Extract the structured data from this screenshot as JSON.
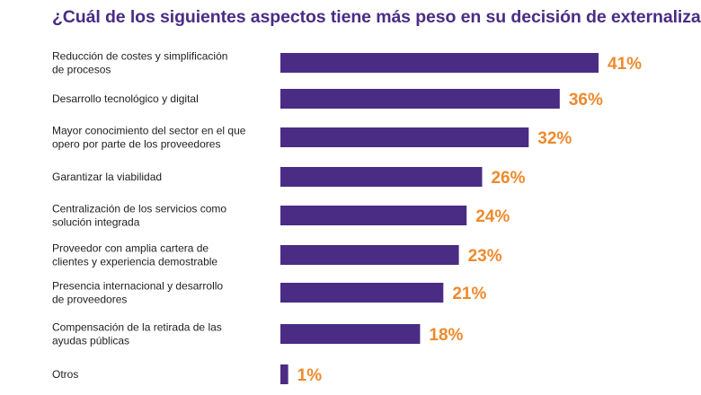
{
  "chart_data": {
    "type": "bar",
    "orientation": "horizontal",
    "title": "¿Cuál de los siguientes aspectos tiene más peso en su decisión de externalizar?",
    "categories": [
      [
        "Reducción de costes y simplificación",
        "de procesos"
      ],
      [
        "Desarrollo tecnológico y digital"
      ],
      [
        "Mayor conocimiento del sector en el que",
        "opero por parte de los proveedores"
      ],
      [
        "Garantizar la viabilidad"
      ],
      [
        "Centralización de los servicios como",
        "solución integrada"
      ],
      [
        "Proveedor con amplia cartera de",
        "clientes y experiencia demostrable"
      ],
      [
        "Presencia internacional y desarrollo",
        "de proveedores"
      ],
      [
        "Compensación de la retirada de las",
        "ayudas públicas"
      ],
      [
        "Otros"
      ]
    ],
    "values": [
      41,
      36,
      32,
      26,
      24,
      23,
      21,
      18,
      1
    ],
    "value_suffix": "%",
    "xlim": [
      0,
      41
    ],
    "xlabel": "",
    "ylabel": "",
    "grid": false,
    "bar_color": "#4a2c85",
    "label_color": "#ee8a2c"
  }
}
